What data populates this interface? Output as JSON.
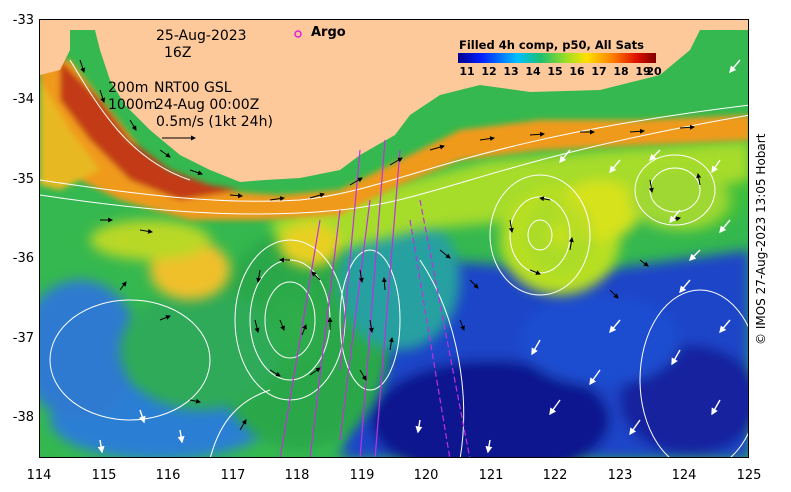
{
  "map": {
    "date": "25-Aug-2023",
    "time": "16Z",
    "depth_line1": "200m",
    "depth_line2": "1000m",
    "product": "NRT00 GSL",
    "product_time": "24-Aug 00:00Z",
    "scale_label": "0.5m/s (1kt 24h)",
    "argo_label": "Argo",
    "legend_title": "Filled 4h comp, p50, All Sats",
    "legend_ticks": [
      "11",
      "12",
      "13",
      "14",
      "15",
      "16",
      "17",
      "18",
      "19",
      "20"
    ],
    "credit": "© IMOS 27-Aug-2023 13:05 Hobart",
    "y_ticks": [
      "-33",
      "-34",
      "-35",
      "-36",
      "-37",
      "-38"
    ],
    "x_ticks": [
      "114",
      "115",
      "116",
      "117",
      "118",
      "119",
      "120",
      "121",
      "122",
      "123",
      "124",
      "125"
    ],
    "colors": {
      "land": "#fdc99b",
      "argo_marker": "#e020e0",
      "track": "#c030e0",
      "contour": "#ffffff"
    }
  }
}
